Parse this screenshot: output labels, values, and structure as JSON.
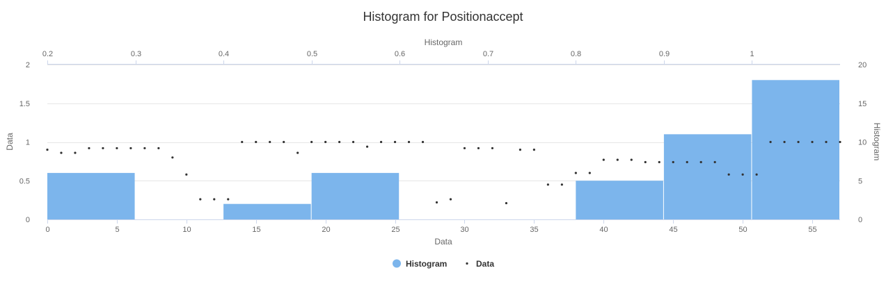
{
  "chart_data": {
    "title": "Histogram for Positionaccept",
    "bottom_axis": {
      "label": "Data",
      "min": 0,
      "max": 57,
      "ticks": [
        0,
        5,
        10,
        15,
        20,
        25,
        30,
        35,
        40,
        45,
        50,
        55
      ]
    },
    "top_axis": {
      "label": "Histogram",
      "min": 0.2,
      "max": 1.1,
      "ticks": [
        0.2,
        0.3,
        0.4,
        0.5,
        0.6,
        0.7,
        0.8,
        0.9,
        1
      ]
    },
    "left_axis": {
      "label": "Data",
      "min": 0,
      "max": 2,
      "ticks": [
        0,
        0.5,
        1,
        1.5,
        2
      ]
    },
    "right_axis": {
      "label": "Histogram",
      "min": 0,
      "max": 20,
      "ticks": [
        0,
        5,
        10,
        15,
        20
      ]
    },
    "grid": true,
    "legend_position": "bottom-center",
    "colors": {
      "histogram": "#7cb5ec",
      "data": "#333333"
    },
    "series": [
      {
        "name": "Histogram",
        "type": "histogram",
        "bins": [
          {
            "x0": 0.2,
            "x1": 0.3,
            "count": 6
          },
          {
            "x0": 0.3,
            "x1": 0.4,
            "count": 0
          },
          {
            "x0": 0.4,
            "x1": 0.5,
            "count": 2
          },
          {
            "x0": 0.5,
            "x1": 0.6,
            "count": 6
          },
          {
            "x0": 0.6,
            "x1": 0.7,
            "count": 0
          },
          {
            "x0": 0.7,
            "x1": 0.8,
            "count": 0
          },
          {
            "x0": 0.8,
            "x1": 0.9,
            "count": 5
          },
          {
            "x0": 0.9,
            "x1": 1.0,
            "count": 11
          },
          {
            "x0": 1.0,
            "x1": 1.1,
            "count": 18
          }
        ]
      },
      {
        "name": "Data",
        "type": "scatter",
        "x": [
          0,
          1,
          2,
          3,
          4,
          5,
          6,
          7,
          8,
          9,
          10,
          11,
          12,
          13,
          14,
          15,
          16,
          17,
          18,
          19,
          20,
          21,
          22,
          23,
          24,
          25,
          26,
          27,
          28,
          29,
          30,
          31,
          32,
          33,
          34,
          35,
          36,
          37,
          38,
          39,
          40,
          41,
          42,
          43,
          44,
          45,
          46,
          47,
          48,
          49,
          50,
          51,
          52,
          53,
          54,
          55,
          56,
          57
        ],
        "y": [
          0.9,
          0.86,
          0.86,
          0.92,
          0.92,
          0.92,
          0.92,
          0.92,
          0.92,
          0.8,
          0.58,
          0.26,
          0.26,
          0.26,
          1.0,
          1.0,
          1.0,
          1.0,
          0.86,
          1.0,
          1.0,
          1.0,
          1.0,
          0.94,
          1.0,
          1.0,
          1.0,
          1.0,
          0.22,
          0.26,
          0.92,
          0.92,
          0.92,
          0.21,
          0.9,
          0.9,
          0.45,
          0.45,
          0.6,
          0.6,
          0.77,
          0.77,
          0.77,
          0.74,
          0.74,
          0.74,
          0.74,
          0.74,
          0.74,
          0.58,
          0.58,
          0.58,
          1.0,
          1.0,
          1.0,
          1.0,
          1.0,
          1.0
        ]
      }
    ]
  }
}
